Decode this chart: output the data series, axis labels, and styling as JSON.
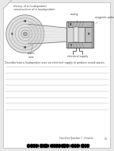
{
  "bg_color": "#e8e8e8",
  "page_bg": "#ffffff",
  "title1": "theory of a loudspeaker",
  "title2": "construction of a loudspeaker",
  "question_text": "Describe how a loudspeaker uses an electrical supply to produce sound waves.",
  "footer_text": "Check for Question 7 - 8 marks",
  "page_num": "11",
  "label_casing": "casing",
  "label_magnetic_poles": "magnetic poles",
  "label_paper_cone": "paper\ncone",
  "label_electrical_supply": "electrical supply",
  "answer_lines": 8,
  "line_color": "#bbbbbb",
  "diagram_color": "#777777",
  "text_color": "#444444",
  "dark_color": "#333333"
}
